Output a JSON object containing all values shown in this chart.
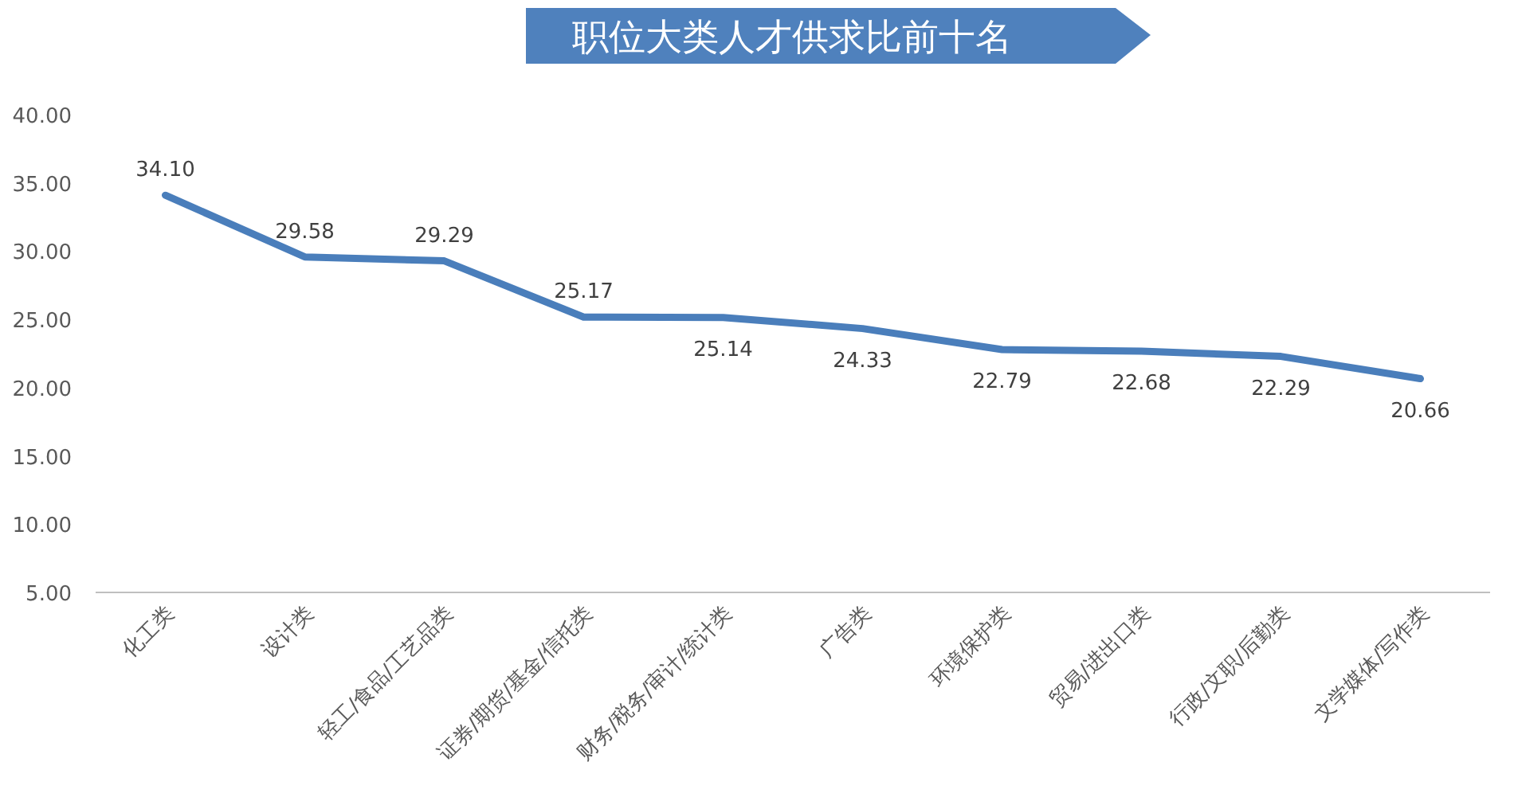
{
  "chart_data": {
    "type": "line",
    "title": "职位大类人才供求比前十名",
    "categories": [
      "化工类",
      "设计类",
      "轻工/食品/工艺品类",
      "证券/期货/基金/信托类",
      "财务/税务/审计/统计类",
      "广告类",
      "环境保护类",
      "贸易/进出口类",
      "行政/文职/后勤类",
      "文学媒体/写作类"
    ],
    "series": [
      {
        "color": "#4a7ebb",
        "values": [
          34.1,
          29.58,
          29.29,
          25.17,
          25.14,
          24.33,
          22.79,
          22.68,
          22.29,
          20.66
        ],
        "value_labels": [
          "34.10",
          "29.58",
          "29.29",
          "25.17",
          "25.14",
          "24.33",
          "22.79",
          "22.68",
          "22.29",
          "20.66"
        ]
      }
    ],
    "ylim": [
      5,
      40
    ],
    "yticks": [
      {
        "value": 5,
        "label": "5.00"
      },
      {
        "value": 10,
        "label": "10.00"
      },
      {
        "value": 15,
        "label": "15.00"
      },
      {
        "value": 20,
        "label": "20.00"
      },
      {
        "value": 25,
        "label": "25.00"
      },
      {
        "value": 30,
        "label": "30.00"
      },
      {
        "value": 35,
        "label": "35.00"
      },
      {
        "value": 40,
        "label": "40.00"
      }
    ],
    "data_labels": true
  }
}
